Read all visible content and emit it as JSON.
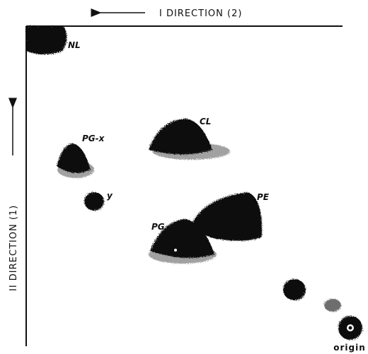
{
  "axes": {
    "horizontal": "I  DIRECTION (2)",
    "vertical": "II  DIRECTION (1)"
  },
  "spots": [
    {
      "label": "NL"
    },
    {
      "label": "CL"
    },
    {
      "label": "PG-x"
    },
    {
      "label": "y"
    },
    {
      "label": "PE"
    },
    {
      "label": "PG"
    },
    {
      "label": "origin"
    }
  ]
}
